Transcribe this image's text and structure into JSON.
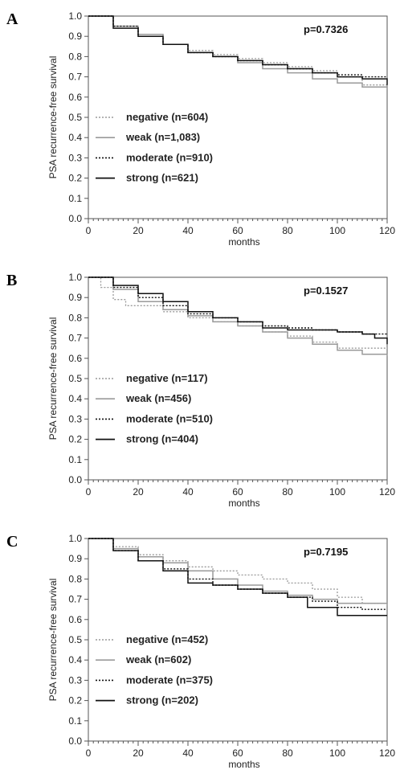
{
  "figure": {
    "ylabel": "PSA recurrence-free survival",
    "xlabel": "months"
  },
  "series_styles": [
    {
      "name": "negative",
      "color": "#9a9a9a",
      "dash": "2,2",
      "width": 1.3
    },
    {
      "name": "weak",
      "color": "#9a9a9a",
      "dash": "",
      "width": 1.5
    },
    {
      "name": "moderate",
      "color": "#111111",
      "dash": "2,2",
      "width": 1.4
    },
    {
      "name": "strong",
      "color": "#111111",
      "dash": "",
      "width": 1.5
    }
  ],
  "chart_data": [
    {
      "type": "line",
      "panel": "A",
      "annotation": "p=0.7326",
      "xlabel": "months",
      "ylabel": "PSA recurrence-free survival",
      "xlim": [
        0,
        120
      ],
      "ylim": [
        0,
        1.0
      ],
      "xticks": [
        "0",
        "20",
        "40",
        "60",
        "80",
        "100",
        "120"
      ],
      "yticks": [
        "0.0",
        "0.1",
        "0.2",
        "0.3",
        "0.4",
        "0.5",
        "0.6",
        "0.7",
        "0.8",
        "0.9",
        "1.0"
      ],
      "legend_position": "lower-left",
      "series": [
        {
          "name": "negative",
          "label": "negative (n=604)",
          "x": [
            0,
            10,
            20,
            30,
            40,
            50,
            60,
            70,
            80,
            90,
            100,
            110,
            120
          ],
          "y": [
            1.0,
            0.95,
            0.9,
            0.86,
            0.83,
            0.81,
            0.79,
            0.77,
            0.75,
            0.73,
            0.7,
            0.66,
            0.64
          ]
        },
        {
          "name": "weak",
          "label": "weak (n=1,083)",
          "x": [
            0,
            10,
            20,
            30,
            40,
            50,
            60,
            70,
            80,
            90,
            100,
            110,
            120
          ],
          "y": [
            1.0,
            0.95,
            0.91,
            0.86,
            0.82,
            0.8,
            0.77,
            0.74,
            0.72,
            0.69,
            0.67,
            0.65,
            0.64
          ]
        },
        {
          "name": "moderate",
          "label": "moderate (n=910)",
          "x": [
            0,
            10,
            20,
            30,
            40,
            50,
            60,
            70,
            80,
            90,
            100,
            110,
            120
          ],
          "y": [
            1.0,
            0.95,
            0.9,
            0.86,
            0.82,
            0.8,
            0.78,
            0.76,
            0.74,
            0.72,
            0.71,
            0.7,
            0.7
          ]
        },
        {
          "name": "strong",
          "label": "strong (n=621)",
          "x": [
            0,
            10,
            20,
            30,
            40,
            50,
            60,
            70,
            80,
            90,
            100,
            110,
            120
          ],
          "y": [
            1.0,
            0.94,
            0.9,
            0.86,
            0.82,
            0.8,
            0.78,
            0.76,
            0.74,
            0.72,
            0.7,
            0.69,
            0.66
          ]
        }
      ]
    },
    {
      "type": "line",
      "panel": "B",
      "annotation": "p=0.1527",
      "xlabel": "months",
      "ylabel": "PSA recurrence-free survival",
      "xlim": [
        0,
        120
      ],
      "ylim": [
        0,
        1.0
      ],
      "xticks": [
        "0",
        "20",
        "40",
        "60",
        "80",
        "100",
        "120"
      ],
      "yticks": [
        "0.0",
        "0.1",
        "0.2",
        "0.3",
        "0.4",
        "0.5",
        "0.6",
        "0.7",
        "0.8",
        "0.9",
        "1.0"
      ],
      "legend_position": "lower-left",
      "series": [
        {
          "name": "negative",
          "label": "negative (n=117)",
          "x": [
            0,
            5,
            10,
            15,
            20,
            30,
            40,
            50,
            60,
            70,
            80,
            90,
            100,
            110,
            120
          ],
          "y": [
            1.0,
            0.95,
            0.89,
            0.86,
            0.86,
            0.83,
            0.8,
            0.78,
            0.76,
            0.73,
            0.71,
            0.68,
            0.65,
            0.65,
            0.65
          ]
        },
        {
          "name": "weak",
          "label": "weak (n=456)",
          "x": [
            0,
            10,
            20,
            30,
            40,
            50,
            60,
            70,
            80,
            90,
            100,
            110,
            120
          ],
          "y": [
            1.0,
            0.94,
            0.88,
            0.84,
            0.81,
            0.78,
            0.76,
            0.73,
            0.7,
            0.67,
            0.64,
            0.62,
            0.61
          ]
        },
        {
          "name": "moderate",
          "label": "moderate (n=510)",
          "x": [
            0,
            10,
            20,
            30,
            40,
            50,
            60,
            70,
            80,
            90,
            100,
            110,
            120
          ],
          "y": [
            1.0,
            0.95,
            0.9,
            0.86,
            0.82,
            0.8,
            0.78,
            0.76,
            0.75,
            0.74,
            0.73,
            0.72,
            0.72
          ]
        },
        {
          "name": "strong",
          "label": "strong (n=404)",
          "x": [
            0,
            10,
            20,
            30,
            40,
            50,
            60,
            70,
            80,
            90,
            100,
            110,
            115,
            120
          ],
          "y": [
            1.0,
            0.96,
            0.92,
            0.88,
            0.83,
            0.8,
            0.78,
            0.75,
            0.74,
            0.74,
            0.73,
            0.72,
            0.7,
            0.67
          ]
        }
      ]
    },
    {
      "type": "line",
      "panel": "C",
      "annotation": "p=0.7195",
      "xlabel": "months",
      "ylabel": "PSA recurrence-free survival",
      "xlim": [
        0,
        120
      ],
      "ylim": [
        0,
        1.0
      ],
      "xticks": [
        "0",
        "20",
        "40",
        "60",
        "80",
        "100",
        "120"
      ],
      "yticks": [
        "0.0",
        "0.1",
        "0.2",
        "0.3",
        "0.4",
        "0.5",
        "0.6",
        "0.7",
        "0.8",
        "0.9",
        "1.0"
      ],
      "legend_position": "lower-left",
      "series": [
        {
          "name": "negative",
          "label": "negative (n=452)",
          "x": [
            0,
            10,
            20,
            30,
            40,
            50,
            60,
            70,
            80,
            90,
            100,
            110,
            120
          ],
          "y": [
            1.0,
            0.96,
            0.92,
            0.89,
            0.86,
            0.84,
            0.82,
            0.8,
            0.78,
            0.75,
            0.71,
            0.68,
            0.67
          ]
        },
        {
          "name": "weak",
          "label": "weak (n=602)",
          "x": [
            0,
            10,
            20,
            30,
            40,
            50,
            60,
            70,
            80,
            90,
            100,
            110,
            120
          ],
          "y": [
            1.0,
            0.95,
            0.91,
            0.88,
            0.84,
            0.8,
            0.77,
            0.74,
            0.72,
            0.7,
            0.68,
            0.68,
            0.67
          ]
        },
        {
          "name": "moderate",
          "label": "moderate (n=375)",
          "x": [
            0,
            10,
            20,
            30,
            40,
            50,
            60,
            70,
            80,
            90,
            100,
            110,
            120
          ],
          "y": [
            1.0,
            0.94,
            0.89,
            0.85,
            0.8,
            0.77,
            0.75,
            0.73,
            0.71,
            0.69,
            0.66,
            0.65,
            0.65
          ]
        },
        {
          "name": "strong",
          "label": "strong (n=202)",
          "x": [
            0,
            10,
            20,
            30,
            40,
            50,
            60,
            70,
            80,
            88,
            100,
            110,
            120
          ],
          "y": [
            1.0,
            0.94,
            0.89,
            0.84,
            0.78,
            0.77,
            0.75,
            0.73,
            0.71,
            0.66,
            0.62,
            0.62,
            0.62
          ]
        }
      ]
    }
  ]
}
